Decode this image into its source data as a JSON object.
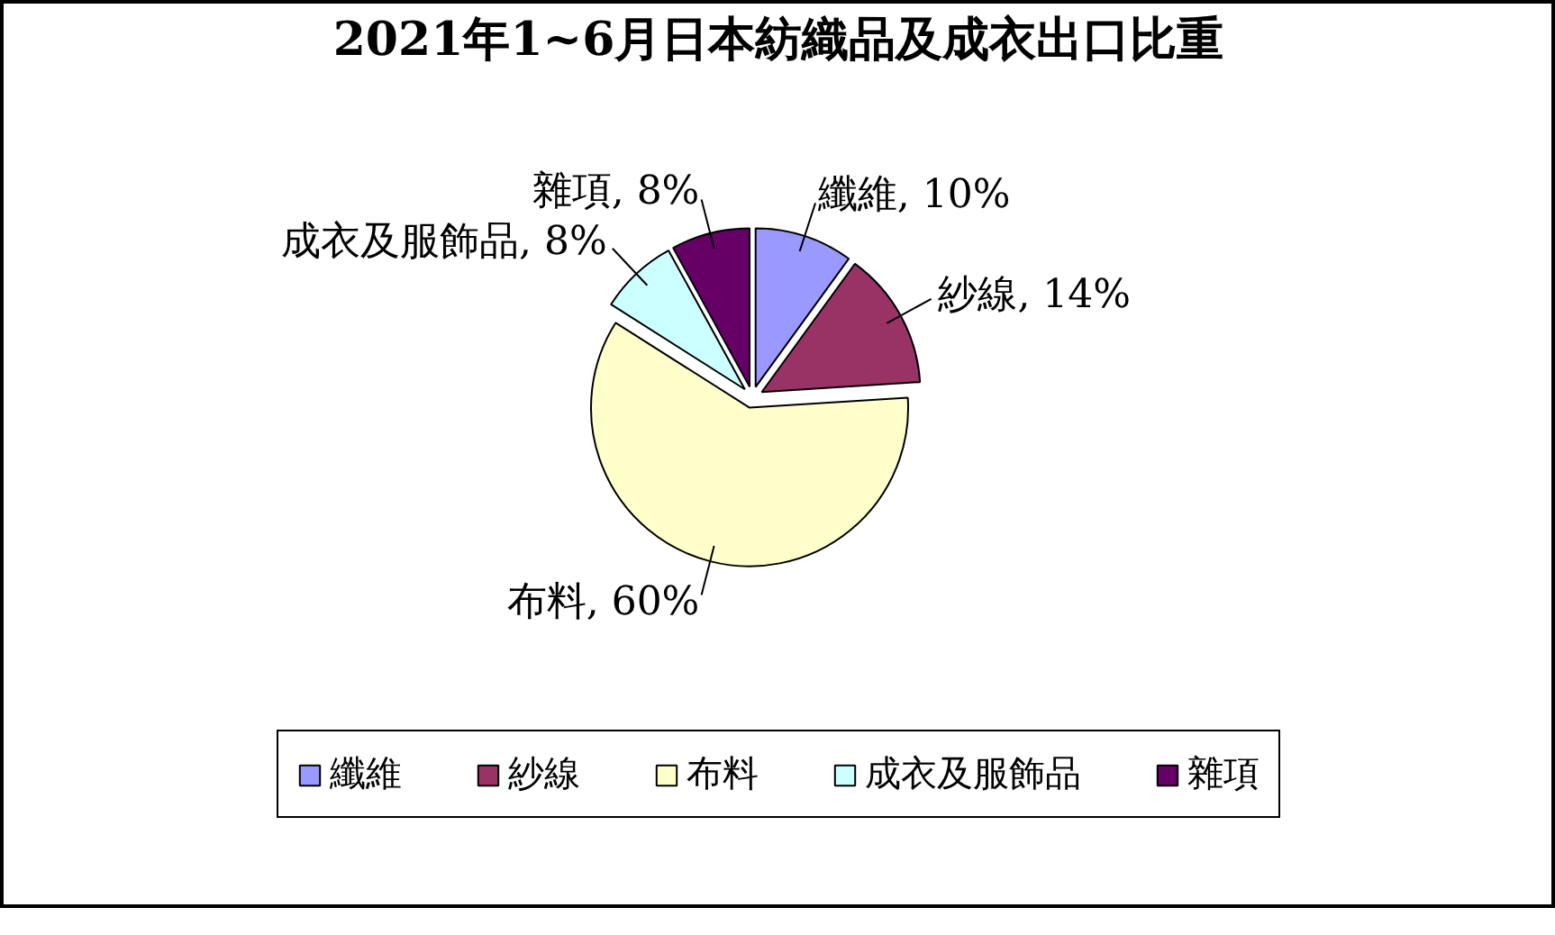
{
  "chart_data": {
    "type": "pie",
    "title": "2021年1~6月日本紡織品及成衣出口比重",
    "categories": [
      "纖維",
      "紗線",
      "布料",
      "成衣及服飾品",
      "雜項"
    ],
    "values": [
      10,
      14,
      60,
      8,
      8
    ],
    "colors": [
      "#9999ff",
      "#993366",
      "#ffffcc",
      "#ccffff",
      "#660066"
    ],
    "value_labels": [
      "纖維, 10%",
      "紗線, 14%",
      "布料, 60%",
      "成衣及服飾品, 8%",
      "雜項, 8%"
    ],
    "legend": "bottom"
  }
}
